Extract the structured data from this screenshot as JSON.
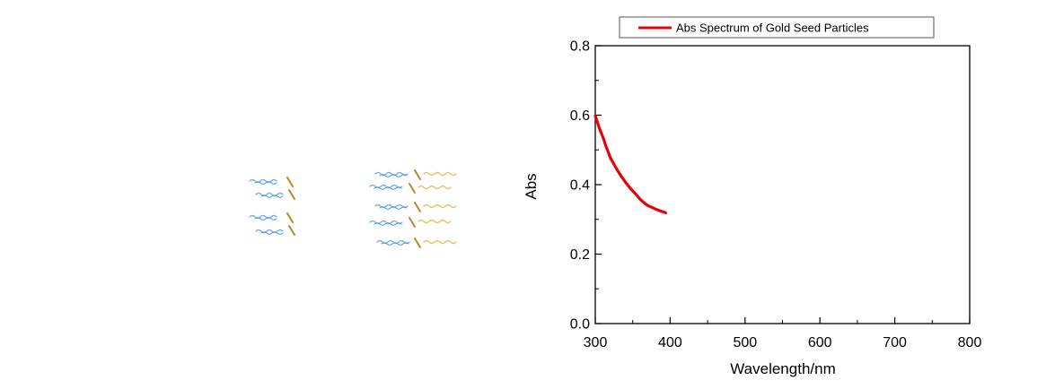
{
  "chart_data": {
    "type": "line",
    "title": "",
    "xlabel": "Wavelength/nm",
    "ylabel": "Abs",
    "xlim": [
      300,
      800
    ],
    "ylim": [
      0.0,
      0.8
    ],
    "x_ticks": [
      300,
      400,
      500,
      600,
      700,
      800
    ],
    "y_ticks": [
      0.0,
      0.2,
      0.4,
      0.6,
      0.8
    ],
    "x_tick_labels": [
      "300",
      "400",
      "500",
      "600",
      "700",
      "800"
    ],
    "y_tick_labels": [
      "0.0",
      "0.2",
      "0.4",
      "0.6",
      "0.8"
    ],
    "grid": false,
    "legend": "top",
    "series": [
      {
        "name": "Abs Spectrum of Gold Seed Particles",
        "color": "#e8000b",
        "x": [
          300,
          302,
          305,
          308,
          311,
          314,
          317,
          320,
          325,
          330,
          335,
          340,
          345,
          350,
          355,
          360,
          365,
          370,
          375,
          380,
          385,
          390,
          394
        ],
        "y": [
          0.598,
          0.585,
          0.565,
          0.548,
          0.532,
          0.512,
          0.495,
          0.478,
          0.458,
          0.44,
          0.423,
          0.408,
          0.394,
          0.382,
          0.37,
          0.358,
          0.348,
          0.34,
          0.335,
          0.33,
          0.326,
          0.322,
          0.319
        ]
      }
    ]
  },
  "decoration": {
    "wave_colors": [
      "#7fb3e8",
      "#4a90d9",
      "#e8c46a",
      "#b8862b"
    ]
  }
}
